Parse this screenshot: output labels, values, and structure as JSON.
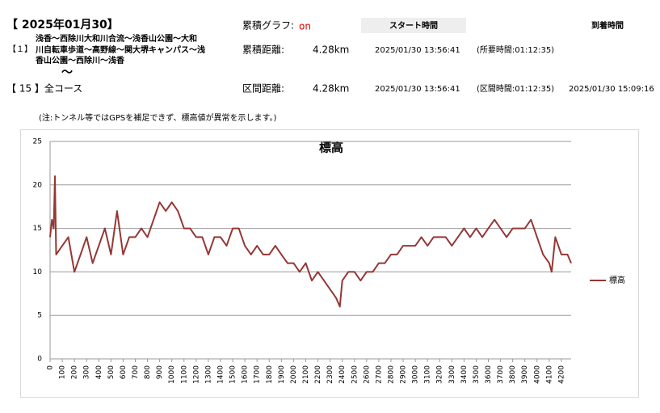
{
  "header": {
    "date": "【 2025年01月30】",
    "graph_label": "累積グラフ:",
    "graph_state": "on",
    "start_header": "スタート時間",
    "arrival_header": "到着時間"
  },
  "rows": [
    {
      "index": "【１】",
      "route": [
        "浅香～西除川大和川合流～浅香山公園～大和",
        "川自転車歩道～高野線～関大堺キャンパス～浅",
        "香山公園～西除川～浅香"
      ],
      "mark": "〜",
      "distance_label": "累積距離:",
      "distance": "4.28km",
      "start": "2025/01/30 13:56:41",
      "duration": "(所要時間:01:12:35)"
    },
    {
      "index": "【 15 】全コース",
      "distance_label": "区間距離:",
      "distance": "4.28km",
      "start": "2025/01/30 13:56:41",
      "duration": "(区間時間:01:12:35)",
      "arrival": "2025/01/30 15:09:16"
    }
  ],
  "note": "(注:トンネル等ではGPSを補足できず、標高値が異常を示します。)",
  "chart_data": {
    "type": "line",
    "title": "標高",
    "x": [
      0,
      15,
      30,
      40,
      50,
      100,
      150,
      200,
      250,
      300,
      350,
      400,
      450,
      500,
      550,
      600,
      650,
      700,
      750,
      800,
      850,
      900,
      950,
      1000,
      1050,
      1100,
      1150,
      1200,
      1250,
      1300,
      1350,
      1400,
      1450,
      1500,
      1550,
      1600,
      1650,
      1700,
      1750,
      1800,
      1850,
      1900,
      1950,
      2000,
      2050,
      2100,
      2150,
      2200,
      2250,
      2300,
      2350,
      2380,
      2400,
      2450,
      2500,
      2550,
      2600,
      2650,
      2700,
      2750,
      2800,
      2850,
      2900,
      2950,
      3000,
      3050,
      3100,
      3150,
      3200,
      3250,
      3300,
      3350,
      3400,
      3450,
      3500,
      3550,
      3600,
      3650,
      3700,
      3750,
      3800,
      3850,
      3900,
      3950,
      4000,
      4050,
      4100,
      4120,
      4150,
      4200,
      4250,
      4280
    ],
    "series": [
      {
        "name": "標高",
        "color": "#953735",
        "values": [
          14,
          16,
          15,
          21,
          12,
          13,
          14,
          10,
          12,
          14,
          11,
          13,
          15,
          12,
          17,
          12,
          14,
          14,
          15,
          14,
          16,
          18,
          17,
          18,
          17,
          15,
          15,
          14,
          14,
          12,
          14,
          14,
          13,
          15,
          15,
          13,
          12,
          13,
          12,
          12,
          13,
          12,
          11,
          11,
          10,
          11,
          9,
          10,
          9,
          8,
          7,
          6,
          9,
          10,
          10,
          9,
          10,
          10,
          11,
          11,
          12,
          12,
          13,
          13,
          13,
          14,
          13,
          14,
          14,
          14,
          13,
          14,
          15,
          14,
          15,
          14,
          15,
          16,
          15,
          14,
          15,
          15,
          15,
          16,
          14,
          12,
          11,
          10,
          14,
          12,
          12,
          11
        ]
      }
    ],
    "xlim": [
      0,
      4280
    ],
    "ylim": [
      0,
      25
    ],
    "xticks": [
      0,
      100,
      200,
      300,
      400,
      500,
      600,
      700,
      800,
      900,
      1000,
      1100,
      1200,
      1300,
      1400,
      1500,
      1600,
      1700,
      1800,
      1900,
      2000,
      2100,
      2200,
      2300,
      2400,
      2500,
      2600,
      2700,
      2800,
      2900,
      3000,
      3100,
      3200,
      3300,
      3400,
      3500,
      3600,
      3700,
      3800,
      3900,
      4000,
      4100,
      4200
    ],
    "yticks": [
      0,
      5,
      10,
      15,
      20,
      25
    ],
    "grid": true,
    "legend": "right"
  }
}
